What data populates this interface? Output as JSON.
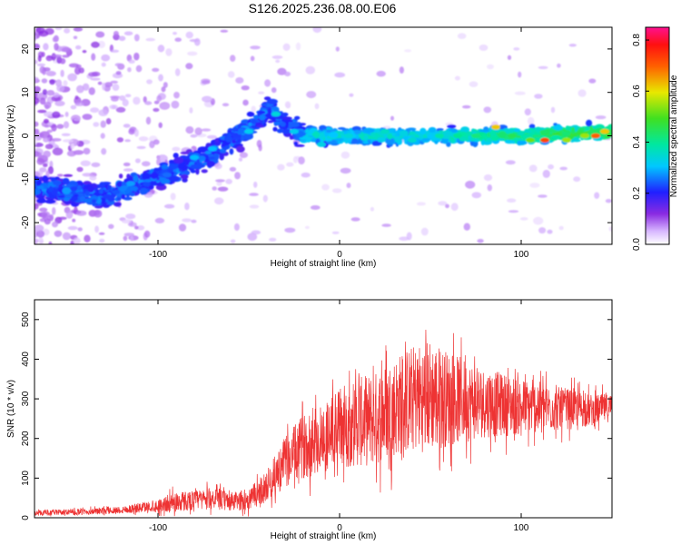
{
  "title": "S126.2025.236.08.00.E06",
  "chart_data": [
    {
      "type": "heatmap",
      "title": "S126.2025.236.08.00.E06",
      "xlabel": "Height of straight line (km)",
      "ylabel": "Frequency (Hz)",
      "xlim": [
        -168,
        150
      ],
      "ylim": [
        -25,
        25
      ],
      "xticks": [
        -100,
        0,
        100
      ],
      "yticks": [
        -20,
        -10,
        0,
        10,
        20
      ],
      "xtick_labels": [
        "-100",
        "0",
        "100"
      ],
      "ytick_labels": [
        "-20",
        "-10",
        "0",
        "10",
        "20"
      ],
      "colorbar": {
        "label": "Normalized spectral amplitude",
        "range": [
          0.0,
          0.85
        ],
        "ticks": [
          0.0,
          0.2,
          0.4,
          0.6,
          0.8
        ],
        "tick_labels": [
          "0.0",
          "0.2",
          "0.4",
          "0.6",
          "0.8"
        ],
        "colormap": "rainbow"
      },
      "ridge": {
        "description_points_x": [
          -168,
          -130,
          -110,
          -90,
          -70,
          -50,
          -40,
          -30,
          -20,
          0,
          50,
          100,
          150
        ],
        "description_points_y": [
          -12,
          -14,
          -11,
          -8,
          -4,
          2,
          6,
          3,
          0,
          0,
          0,
          0,
          1
        ],
        "peak_amplitude": 0.82
      }
    },
    {
      "type": "line",
      "xlabel": "Height of straight line (km)",
      "ylabel": "SNR (10 * v/v)",
      "xlim": [
        -168,
        150
      ],
      "ylim": [
        0,
        550
      ],
      "xticks": [
        -100,
        0,
        100
      ],
      "yticks": [
        0,
        100,
        200,
        300,
        400,
        500
      ],
      "xtick_labels": [
        "-100",
        "0",
        "100"
      ],
      "ytick_labels": [
        "0",
        "100",
        "200",
        "300",
        "400",
        "500"
      ],
      "color": "#ee3333",
      "envelope": {
        "x": [
          -168,
          -140,
          -120,
          -100,
          -90,
          -80,
          -70,
          -60,
          -50,
          -40,
          -30,
          -20,
          -10,
          0,
          10,
          20,
          30,
          40,
          50,
          60,
          70,
          80,
          90,
          100,
          110,
          120,
          130,
          140,
          150
        ],
        "mean": [
          12,
          15,
          20,
          30,
          40,
          45,
          50,
          40,
          45,
          80,
          140,
          180,
          200,
          230,
          240,
          250,
          280,
          300,
          310,
          300,
          295,
          290,
          285,
          280,
          280,
          275,
          275,
          270,
          280
        ],
        "spread": [
          8,
          10,
          12,
          20,
          35,
          30,
          35,
          30,
          35,
          50,
          80,
          100,
          110,
          130,
          140,
          150,
          160,
          170,
          180,
          150,
          130,
          110,
          100,
          90,
          80,
          70,
          60,
          50,
          45
        ]
      }
    }
  ]
}
